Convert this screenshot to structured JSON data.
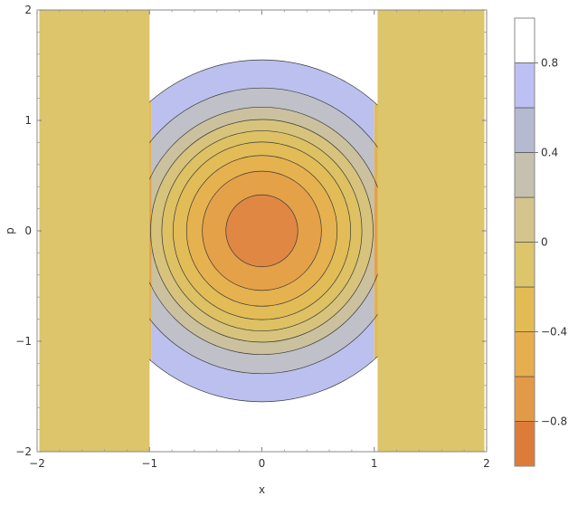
{
  "chart_data": {
    "type": "contour",
    "xlabel": "x",
    "ylabel": "p",
    "xlim": [
      -2,
      2
    ],
    "ylim": [
      -2,
      2
    ],
    "x_ticks": [
      {
        "value": -2,
        "label": "−2"
      },
      {
        "value": -1,
        "label": "−1"
      },
      {
        "value": 0,
        "label": "0"
      },
      {
        "value": 1,
        "label": "1"
      },
      {
        "value": 2,
        "label": "2"
      }
    ],
    "y_ticks": [
      {
        "value": -2,
        "label": "−2"
      },
      {
        "value": -1,
        "label": "−1"
      },
      {
        "value": 0,
        "label": "0"
      },
      {
        "value": 1,
        "label": "1"
      },
      {
        "value": 2,
        "label": "2"
      }
    ],
    "outer_regions": [
      {
        "x": [
          -1.98,
          -1.0
        ],
        "y": [
          -2,
          2
        ],
        "color": "#DCC56A"
      },
      {
        "x": [
          1.03,
          1.98
        ],
        "y": [
          -2,
          2
        ],
        "color": "#DCC56A"
      }
    ],
    "center_band": {
      "x": [
        -0.98,
        1.0
      ],
      "color": "#FFFFFF"
    },
    "contour_radii": [
      1.52,
      1.27,
      1.1,
      0.99,
      0.89,
      0.79,
      0.67,
      0.53,
      0.32
    ],
    "band_colors": [
      "#BCC0EE",
      "#C0C0C8",
      "#CBC19E",
      "#D7C37C",
      "#DDC163",
      "#E2BC57",
      "#E6B14F",
      "#E4A147",
      "#E08744"
    ],
    "side_band_colors": [
      "#E2BC57",
      "#E6B14F",
      "#E4A147",
      "#E4A147",
      "#E4A147",
      "#E4A147",
      "#E4A147",
      "#E4A147",
      "#E4A147"
    ],
    "legend": {
      "range": [
        -1,
        1
      ],
      "bands": [
        {
          "from": -1.0,
          "to": -0.8,
          "color": "#DD7B3B"
        },
        {
          "from": -0.8,
          "to": -0.6,
          "color": "#E39A48"
        },
        {
          "from": -0.6,
          "to": -0.4,
          "color": "#E6AE4E"
        },
        {
          "from": -0.4,
          "to": -0.2,
          "color": "#E3BB55"
        },
        {
          "from": -0.2,
          "to": 0.0,
          "color": "#DCC56A"
        },
        {
          "from": 0.0,
          "to": 0.2,
          "color": "#D3C58D"
        },
        {
          "from": 0.2,
          "to": 0.4,
          "color": "#C6C1AE"
        },
        {
          "from": 0.4,
          "to": 0.6,
          "color": "#B5BAD0"
        },
        {
          "from": 0.6,
          "to": 0.8,
          "color": "#BCC0F2"
        },
        {
          "from": 0.8,
          "to": 1.0,
          "color": "#FFFFFF"
        }
      ],
      "ticks": [
        {
          "value": 0.8,
          "label": "0.8"
        },
        {
          "value": 0.4,
          "label": "0.4"
        },
        {
          "value": 0.0,
          "label": "0"
        },
        {
          "value": -0.4,
          "label": "−0.4"
        },
        {
          "value": -0.8,
          "label": "−0.8"
        }
      ]
    }
  }
}
